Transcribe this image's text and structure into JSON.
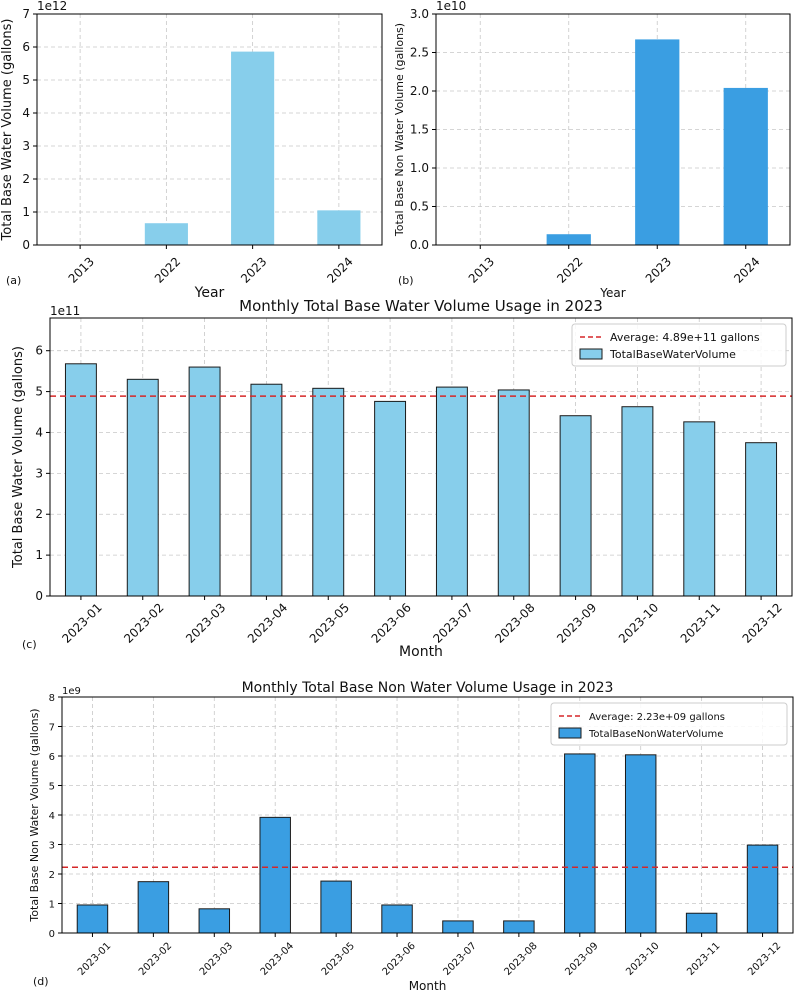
{
  "chart_data": [
    {
      "panel_label": "(a)",
      "type": "bar",
      "title": "",
      "xlabel": "Year",
      "ylabel": "Total Base Water Volume (gallons)",
      "categories": [
        "2013",
        "2022",
        "2023",
        "2024"
      ],
      "values": [
        0.0,
        0.66,
        5.86,
        1.05
      ],
      "multiplier": "1e12",
      "ylim": [
        0,
        7
      ],
      "yticks": [
        "0",
        "1",
        "2",
        "3",
        "4",
        "5",
        "6",
        "7"
      ],
      "ytick_values": [
        0,
        1,
        2,
        3,
        4,
        5,
        6,
        7
      ],
      "color": "#87ceeb",
      "grid": true
    },
    {
      "panel_label": "(b)",
      "type": "bar",
      "title": "",
      "xlabel": "Year",
      "ylabel": "Total Base Non Water Volume (gallons)",
      "categories": [
        "2013",
        "2022",
        "2023",
        "2024"
      ],
      "values": [
        0.0,
        0.14,
        2.67,
        2.04
      ],
      "multiplier": "1e10",
      "ylim": [
        0,
        3.0
      ],
      "yticks": [
        "0.0",
        "0.5",
        "1.0",
        "1.5",
        "2.0",
        "2.5",
        "3.0"
      ],
      "ytick_values": [
        0,
        0.5,
        1.0,
        1.5,
        2.0,
        2.5,
        3.0
      ],
      "color": "#3a9ee2",
      "grid": true
    },
    {
      "panel_label": "(c)",
      "type": "bar",
      "title": "Monthly Total Base Water Volume Usage in 2023",
      "xlabel": "Month",
      "ylabel": "Total Base Water Volume (gallons)",
      "categories": [
        "2023-01",
        "2023-02",
        "2023-03",
        "2023-04",
        "2023-05",
        "2023-06",
        "2023-07",
        "2023-08",
        "2023-09",
        "2023-10",
        "2023-11",
        "2023-12"
      ],
      "values": [
        5.68,
        5.3,
        5.6,
        5.18,
        5.08,
        4.76,
        5.11,
        5.04,
        4.41,
        4.63,
        4.26,
        3.75
      ],
      "multiplier": "1e11",
      "ylim": [
        0,
        6.8
      ],
      "yticks": [
        "0",
        "1",
        "2",
        "3",
        "4",
        "5",
        "6"
      ],
      "ytick_values": [
        0,
        1,
        2,
        3,
        4,
        5,
        6
      ],
      "average": 4.89,
      "legend": [
        {
          "label": "Average: 4.89e+11 gallons",
          "kind": "line"
        },
        {
          "label": "TotalBaseWaterVolume",
          "kind": "bar"
        }
      ],
      "legend_position": "top-right",
      "color": "#87ceeb",
      "average_color": "#d62728",
      "grid": true
    },
    {
      "panel_label": "(d)",
      "type": "bar",
      "title": "Monthly Total Base Non Water Volume Usage in 2023",
      "xlabel": "Month",
      "ylabel": "Total Base Non Water Volume (gallons)",
      "categories": [
        "2023-01",
        "2023-02",
        "2023-03",
        "2023-04",
        "2023-05",
        "2023-06",
        "2023-07",
        "2023-08",
        "2023-09",
        "2023-10",
        "2023-11",
        "2023-12"
      ],
      "values": [
        0.95,
        1.74,
        0.82,
        3.92,
        1.76,
        0.95,
        0.41,
        0.41,
        6.07,
        6.04,
        0.67,
        2.98
      ],
      "multiplier": "1e9",
      "ylim": [
        0,
        8
      ],
      "yticks": [
        "0",
        "1",
        "2",
        "3",
        "4",
        "5",
        "6",
        "7",
        "8"
      ],
      "ytick_values": [
        0,
        1,
        2,
        3,
        4,
        5,
        6,
        7,
        8
      ],
      "average": 2.23,
      "legend": [
        {
          "label": "Average: 2.23e+09 gallons",
          "kind": "line"
        },
        {
          "label": "TotalBaseNonWaterVolume",
          "kind": "bar"
        }
      ],
      "legend_position": "top-right",
      "color": "#3a9ee2",
      "average_color": "#d62728",
      "grid": true
    }
  ]
}
